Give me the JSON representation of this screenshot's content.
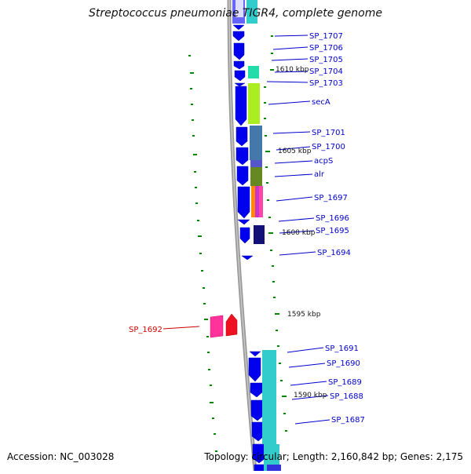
{
  "title": "Streptococcus pneumoniae TIGR4, complete genome",
  "footer": {
    "accession": "Accession: NC_003028",
    "topology": "Topology: circular; Length: 2,160,842 bp; Genes: 2,175"
  },
  "colors": {
    "gene_label": "#0000cc",
    "highlight_label": "#cc0000",
    "forward_gene": "#0000ee",
    "tick": "#008800",
    "backbone": "#888888"
  },
  "scale_labels": [
    "1610 kbp",
    "1605 kbp",
    "1600 kbp",
    "1595 kbp",
    "1590 kbp"
  ],
  "gene_labels": [
    "SP_1707",
    "SP_1706",
    "SP_1705",
    "SP_1704",
    "SP_1703",
    "secA",
    "SP_1701",
    "SP_1700",
    "acpS",
    "alr",
    "SP_1697",
    "SP_1696",
    "SP_1695",
    "SP_1694",
    "SP_1691",
    "SP_1690",
    "SP_1689",
    "SP_1688",
    "SP_1687"
  ],
  "highlight_label": "SP_1692"
}
